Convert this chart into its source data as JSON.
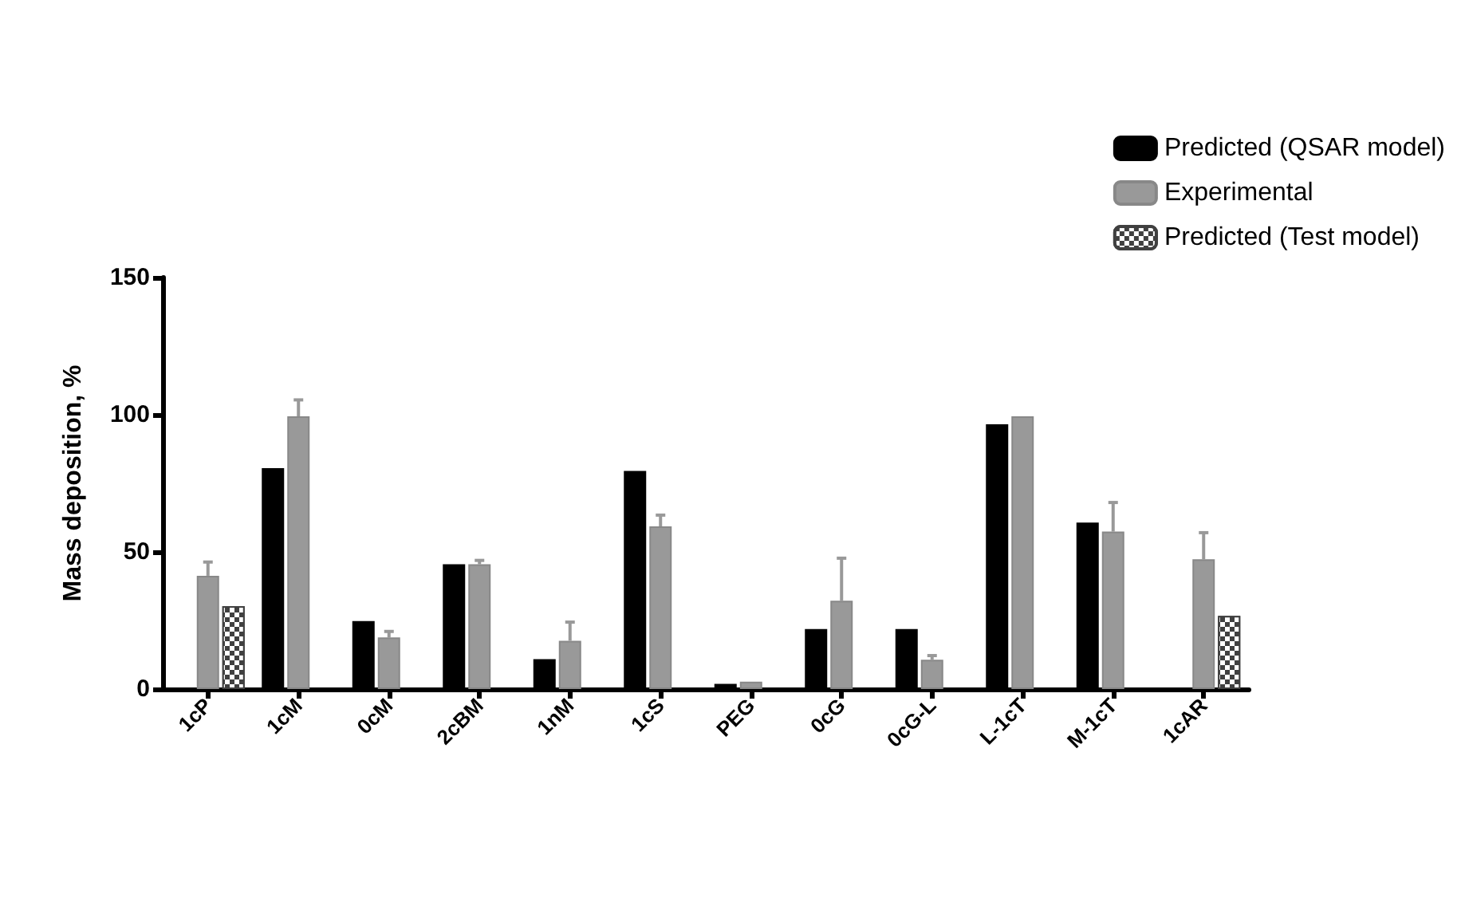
{
  "chart_data": {
    "type": "bar",
    "ylabel": "Mass deposition, %",
    "categories": [
      "1cP",
      "1cM",
      "0cM",
      "2cBM",
      "1nM",
      "1cS",
      "PEG",
      "0cG",
      "0cG-L",
      "L-1cT",
      "M-1cT",
      "1cAR"
    ],
    "series": [
      {
        "name": "Predicted (QSAR model)",
        "color": "#000000",
        "values": [
          null,
          80.5,
          24.8,
          45.5,
          10.9,
          79.5,
          1.9,
          21.9,
          21.9,
          96.5,
          60.7,
          null
        ]
      },
      {
        "name": "Experimental",
        "color": "#999999",
        "values": [
          41.3,
          99.4,
          18.8,
          45.5,
          17.6,
          59.3,
          2.7,
          32.2,
          10.7,
          99.4,
          57.4,
          47.3
        ],
        "errors": [
          [
            41.3,
            46.3
          ],
          [
            99.4,
            105.4
          ],
          [
            18.8,
            21
          ],
          [
            45.5,
            46.9
          ],
          [
            17.6,
            24.4
          ],
          [
            59.3,
            63.4
          ],
          null,
          [
            32.2,
            47.7
          ],
          [
            10.7,
            12.2
          ],
          null,
          [
            57.4,
            68
          ],
          [
            47.3,
            57
          ]
        ]
      },
      {
        "name": "Predicted (Test model)",
        "color": "#404040",
        "values": [
          30.2,
          null,
          null,
          null,
          null,
          null,
          null,
          null,
          null,
          null,
          null,
          26.7
        ]
      }
    ],
    "ylim": [
      0,
      150
    ],
    "yticks": [
      0,
      50,
      100,
      150
    ],
    "grid": false,
    "legend": "top right"
  }
}
